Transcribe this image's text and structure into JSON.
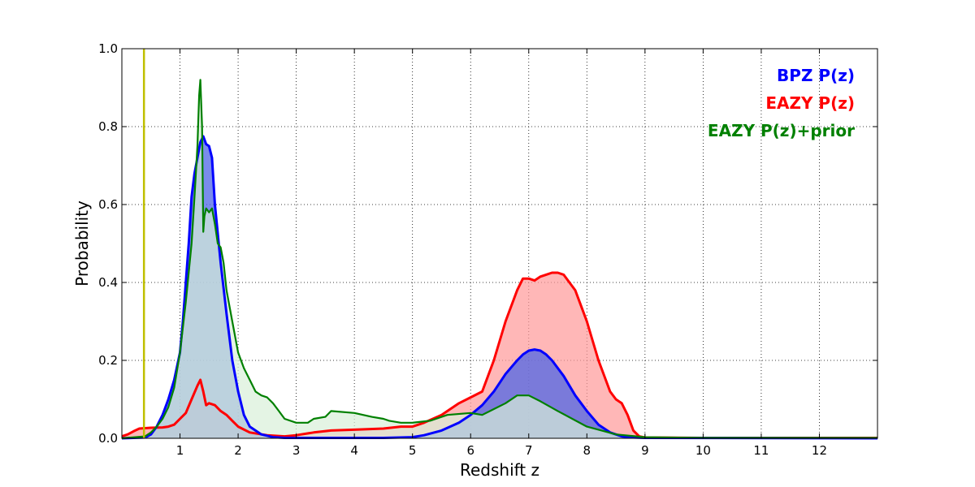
{
  "chart_data": {
    "type": "area",
    "xlabel": "Redshift z",
    "ylabel": "Probability",
    "xlim": [
      0,
      13
    ],
    "ylim": [
      0,
      1.0
    ],
    "x_ticks": [
      1,
      2,
      3,
      4,
      5,
      6,
      7,
      8,
      9,
      10,
      11,
      12
    ],
    "y_ticks": [
      0.0,
      0.2,
      0.4,
      0.6,
      0.8,
      1.0
    ],
    "x_tick_labels": [
      "1",
      "2",
      "3",
      "4",
      "5",
      "6",
      "7",
      "8",
      "9",
      "10",
      "11",
      "12"
    ],
    "y_tick_labels": [
      "0.0",
      "0.2",
      "0.4",
      "0.6",
      "0.8",
      "1.0"
    ],
    "grid": true,
    "legend_placement": "top-right",
    "vline": {
      "x": 0.38,
      "color": "#bfbf00"
    },
    "series": [
      {
        "name": "EAZY P(z)",
        "color": "#ff0000",
        "fill": "#ff9999",
        "x": [
          0,
          0.1,
          0.2,
          0.3,
          0.5,
          0.7,
          0.8,
          0.9,
          1.0,
          1.1,
          1.2,
          1.3,
          1.35,
          1.4,
          1.45,
          1.5,
          1.6,
          1.7,
          1.8,
          1.9,
          2.0,
          2.2,
          2.5,
          2.8,
          3.0,
          3.3,
          3.6,
          4.0,
          4.5,
          4.8,
          5.0,
          5.2,
          5.5,
          5.8,
          6.0,
          6.2,
          6.4,
          6.6,
          6.8,
          6.9,
          7.0,
          7.1,
          7.2,
          7.3,
          7.4,
          7.5,
          7.6,
          7.8,
          8.0,
          8.2,
          8.4,
          8.5,
          8.6,
          8.7,
          8.8,
          8.9,
          9.0,
          10,
          11,
          12,
          13
        ],
        "y": [
          0.005,
          0.01,
          0.018,
          0.025,
          0.027,
          0.028,
          0.03,
          0.035,
          0.05,
          0.065,
          0.1,
          0.135,
          0.15,
          0.12,
          0.085,
          0.09,
          0.085,
          0.07,
          0.06,
          0.045,
          0.03,
          0.015,
          0.008,
          0.005,
          0.008,
          0.015,
          0.02,
          0.022,
          0.025,
          0.03,
          0.03,
          0.04,
          0.06,
          0.09,
          0.105,
          0.12,
          0.2,
          0.3,
          0.38,
          0.41,
          0.41,
          0.405,
          0.415,
          0.42,
          0.425,
          0.425,
          0.42,
          0.38,
          0.3,
          0.2,
          0.12,
          0.1,
          0.09,
          0.06,
          0.02,
          0.005,
          0.002,
          0.001,
          0.001,
          0.001,
          0.001
        ]
      },
      {
        "name": "BPZ P(z)",
        "color": "#0000ff",
        "fill": "#4d66e6",
        "x": [
          0,
          0.4,
          0.5,
          0.6,
          0.7,
          0.8,
          0.9,
          1.0,
          1.05,
          1.1,
          1.15,
          1.2,
          1.25,
          1.3,
          1.35,
          1.4,
          1.45,
          1.5,
          1.55,
          1.6,
          1.7,
          1.8,
          1.9,
          2.0,
          2.1,
          2.2,
          2.4,
          2.6,
          2.8,
          3.0,
          3.5,
          4.0,
          4.5,
          5.0,
          5.2,
          5.5,
          5.8,
          6.0,
          6.2,
          6.4,
          6.6,
          6.8,
          6.9,
          7.0,
          7.1,
          7.2,
          7.3,
          7.4,
          7.6,
          7.8,
          8.0,
          8.2,
          8.4,
          8.6,
          8.8,
          9.0,
          13
        ],
        "y": [
          0,
          0.002,
          0.01,
          0.03,
          0.06,
          0.1,
          0.15,
          0.22,
          0.3,
          0.4,
          0.5,
          0.62,
          0.68,
          0.72,
          0.76,
          0.775,
          0.755,
          0.75,
          0.72,
          0.6,
          0.45,
          0.32,
          0.2,
          0.12,
          0.06,
          0.03,
          0.01,
          0.003,
          0.001,
          0.001,
          0.001,
          0.001,
          0.001,
          0.003,
          0.008,
          0.02,
          0.04,
          0.06,
          0.085,
          0.12,
          0.165,
          0.2,
          0.215,
          0.225,
          0.228,
          0.225,
          0.215,
          0.2,
          0.16,
          0.11,
          0.07,
          0.035,
          0.015,
          0.005,
          0.002,
          0.001,
          0
        ]
      },
      {
        "name": "EAZY P(z)+prior",
        "color": "#008000",
        "fill": "#d9f0d9",
        "x": [
          0,
          0.4,
          0.5,
          0.6,
          0.7,
          0.8,
          0.9,
          1.0,
          1.1,
          1.2,
          1.25,
          1.3,
          1.33,
          1.35,
          1.38,
          1.4,
          1.42,
          1.45,
          1.5,
          1.55,
          1.6,
          1.65,
          1.7,
          1.75,
          1.8,
          1.9,
          2.0,
          2.1,
          2.2,
          2.3,
          2.4,
          2.5,
          2.6,
          2.7,
          2.8,
          3.0,
          3.2,
          3.3,
          3.5,
          3.6,
          4.0,
          4.3,
          4.5,
          4.6,
          4.8,
          5.0,
          5.3,
          5.6,
          6.0,
          6.2,
          6.4,
          6.6,
          6.8,
          7.0,
          7.2,
          7.5,
          8.0,
          8.5,
          9.0,
          10,
          11,
          12,
          13
        ],
        "y": [
          0,
          0.005,
          0.015,
          0.03,
          0.05,
          0.08,
          0.13,
          0.22,
          0.35,
          0.5,
          0.62,
          0.75,
          0.88,
          0.92,
          0.8,
          0.53,
          0.57,
          0.59,
          0.58,
          0.59,
          0.55,
          0.5,
          0.49,
          0.45,
          0.38,
          0.3,
          0.22,
          0.18,
          0.15,
          0.12,
          0.11,
          0.105,
          0.09,
          0.07,
          0.05,
          0.04,
          0.04,
          0.05,
          0.055,
          0.07,
          0.065,
          0.055,
          0.05,
          0.045,
          0.04,
          0.04,
          0.045,
          0.06,
          0.065,
          0.06,
          0.075,
          0.09,
          0.11,
          0.11,
          0.095,
          0.07,
          0.03,
          0.01,
          0.003,
          0.001,
          0.001,
          0.001,
          0.001
        ]
      }
    ]
  }
}
